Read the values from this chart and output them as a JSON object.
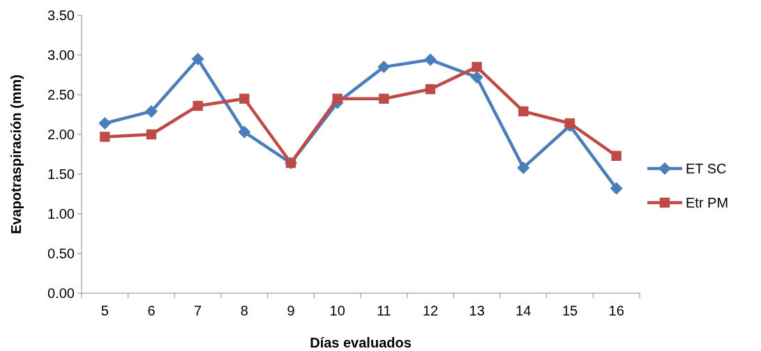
{
  "chart_data": {
    "type": "line",
    "xlabel": "Días evaluados",
    "ylabel": "Evapotraspiración (mm)",
    "categories": [
      "5",
      "6",
      "7",
      "8",
      "9",
      "10",
      "11",
      "12",
      "13",
      "14",
      "15",
      "16"
    ],
    "ylim": [
      0,
      3.5
    ],
    "yticks": [
      {
        "value": 0,
        "label": "0.00"
      },
      {
        "value": 0.5,
        "label": "0.50"
      },
      {
        "value": 1,
        "label": "1.00"
      },
      {
        "value": 1.5,
        "label": "1.50"
      },
      {
        "value": 2,
        "label": "2.00"
      },
      {
        "value": 2.5,
        "label": "2.50"
      },
      {
        "value": 3,
        "label": "3.00"
      },
      {
        "value": 3.5,
        "label": "3.50"
      }
    ],
    "legend": "right",
    "line_style": "solid",
    "series": [
      {
        "name": "ET SC",
        "color": "#4a7ebb",
        "marker": "diamond",
        "values": [
          2.14,
          2.29,
          2.95,
          2.03,
          1.64,
          2.4,
          2.85,
          2.94,
          2.72,
          1.58,
          2.11,
          1.32
        ]
      },
      {
        "name": "Etr PM",
        "color": "#be4b48",
        "marker": "square",
        "values": [
          1.97,
          2.0,
          2.36,
          2.45,
          1.64,
          2.45,
          2.45,
          2.57,
          2.85,
          2.29,
          2.14,
          1.73
        ]
      }
    ]
  }
}
